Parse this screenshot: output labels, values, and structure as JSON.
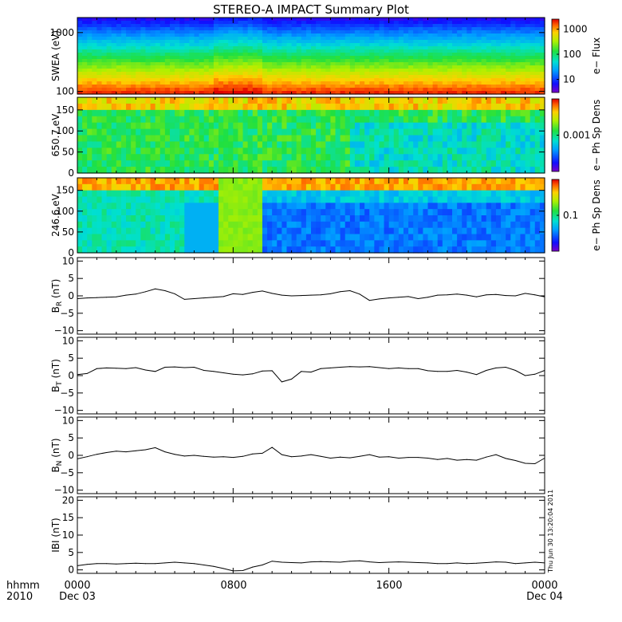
{
  "title": "STEREO-A IMPACT Summary Plot",
  "timestamp": "Thu Jun 30 13:20:04 2011",
  "x_axis": {
    "caption": [
      "hhmm",
      "2010"
    ],
    "ticks": [
      {
        "label": "0000",
        "sub": "Dec 03"
      },
      {
        "label": "0800",
        "sub": ""
      },
      {
        "label": "1600",
        "sub": ""
      },
      {
        "label": "0000",
        "sub": "Dec 04"
      }
    ]
  },
  "chart_data": [
    {
      "type": "heatmap",
      "id": "swea",
      "ylabel": "SWEA (eV)",
      "yscale": "log",
      "ylim": [
        90,
        1800
      ],
      "yticks": [
        {
          "v": 100,
          "label": "100"
        },
        {
          "v": 1000,
          "label": "1000"
        }
      ],
      "colorbar": {
        "label": "e− Flux",
        "scale": "log",
        "range": [
          3,
          2500
        ],
        "ticks": [
          {
            "v": 10,
            "label": "10"
          },
          {
            "v": 100,
            "label": "100"
          },
          {
            "v": 1000,
            "label": "1000"
          }
        ]
      },
      "grid": false
    },
    {
      "type": "heatmap",
      "id": "pad650",
      "ylabel": "650.7 eV",
      "ylim": [
        0,
        180
      ],
      "yticks": [
        {
          "v": 0,
          "label": "0"
        },
        {
          "v": 50,
          "label": "50"
        },
        {
          "v": 100,
          "label": "100"
        },
        {
          "v": 150,
          "label": "150"
        }
      ],
      "colorbar": {
        "label": "e− Ph Sp Dens",
        "scale": "log",
        "range": [
          0.0001,
          0.01
        ],
        "ticks": [
          {
            "v": 0.001,
            "label": "0.001"
          }
        ]
      },
      "grid": false
    },
    {
      "type": "heatmap",
      "id": "pad246",
      "ylabel": "246.6 eV",
      "ylim": [
        0,
        180
      ],
      "yticks": [
        {
          "v": 0,
          "label": "0"
        },
        {
          "v": 50,
          "label": "50"
        },
        {
          "v": 100,
          "label": "100"
        },
        {
          "v": 150,
          "label": "150"
        }
      ],
      "colorbar": {
        "label": "e− Ph Sp Dens",
        "scale": "log",
        "range": [
          0.02,
          0.5
        ],
        "ticks": [
          {
            "v": 0.1,
            "label": "0.1"
          }
        ]
      },
      "grid": false
    },
    {
      "type": "line",
      "id": "br",
      "ylabel": "B",
      "ysub": "R",
      "yunit": " (nT)",
      "ylim": [
        -11,
        11
      ],
      "yticks": [
        {
          "v": -10,
          "label": "−10"
        },
        {
          "v": -5,
          "label": "−5"
        },
        {
          "v": 0,
          "label": "0"
        },
        {
          "v": 5,
          "label": "5"
        },
        {
          "v": 10,
          "label": "10"
        }
      ],
      "x_hours": [
        0,
        0.5,
        1,
        1.5,
        2,
        2.5,
        3,
        3.5,
        4,
        4.5,
        5,
        5.5,
        6,
        6.5,
        7,
        7.5,
        8,
        8.5,
        9,
        9.5,
        10,
        10.5,
        11,
        11.5,
        12,
        12.5,
        13,
        13.5,
        14,
        14.5,
        15,
        15.5,
        16,
        16.5,
        17,
        17.5,
        18,
        18.5,
        19,
        19.5,
        20,
        20.5,
        21,
        21.5,
        22,
        22.5,
        23,
        23.5,
        24
      ],
      "values": [
        -0.8,
        -0.6,
        -0.5,
        -0.4,
        -0.3,
        0.2,
        0.5,
        1.2,
        2.0,
        1.5,
        0.6,
        -1.0,
        -0.8,
        -0.6,
        -0.4,
        -0.2,
        0.6,
        0.4,
        1.0,
        1.4,
        0.7,
        0.2,
        0.0,
        0.1,
        0.2,
        0.3,
        0.6,
        1.2,
        1.5,
        0.5,
        -1.3,
        -0.9,
        -0.6,
        -0.4,
        -0.2,
        -0.8,
        -0.4,
        0.2,
        0.3,
        0.5,
        0.2,
        -0.3,
        0.3,
        0.4,
        0.1,
        0.0,
        0.7,
        0.3,
        -0.3
      ]
    },
    {
      "type": "line",
      "id": "bt",
      "ylabel": "B",
      "ysub": "T",
      "yunit": " (nT)",
      "ylim": [
        -11,
        11
      ],
      "yticks": [
        {
          "v": -10,
          "label": "−10"
        },
        {
          "v": -5,
          "label": "−5"
        },
        {
          "v": 0,
          "label": "0"
        },
        {
          "v": 5,
          "label": "5"
        },
        {
          "v": 10,
          "label": "10"
        }
      ],
      "x_hours": [
        0,
        0.5,
        1,
        1.5,
        2,
        2.5,
        3,
        3.5,
        4,
        4.5,
        5,
        5.5,
        6,
        6.5,
        7,
        7.5,
        8,
        8.5,
        9,
        9.5,
        10,
        10.5,
        11,
        11.5,
        12,
        12.5,
        13,
        13.5,
        14,
        14.5,
        15,
        15.5,
        16,
        16.5,
        17,
        17.5,
        18,
        18.5,
        19,
        19.5,
        20,
        20.5,
        21,
        21.5,
        22,
        22.5,
        23,
        23.5,
        24
      ],
      "values": [
        0.3,
        0.6,
        2.0,
        2.2,
        2.1,
        2.0,
        2.3,
        1.6,
        1.2,
        2.4,
        2.5,
        2.3,
        2.4,
        1.5,
        1.2,
        0.8,
        0.4,
        0.2,
        0.5,
        1.3,
        1.4,
        -1.8,
        -1.0,
        1.2,
        1.0,
        2.0,
        2.2,
        2.4,
        2.6,
        2.5,
        2.6,
        2.3,
        2.0,
        2.2,
        2.0,
        2.0,
        1.4,
        1.2,
        1.2,
        1.5,
        1.0,
        0.3,
        1.5,
        2.2,
        2.4,
        1.5,
        0.0,
        0.4,
        1.5
      ]
    },
    {
      "type": "line",
      "id": "bn",
      "ylabel": "B",
      "ysub": "N",
      "yunit": " (nT)",
      "ylim": [
        -11,
        11
      ],
      "yticks": [
        {
          "v": -10,
          "label": "−10"
        },
        {
          "v": -5,
          "label": "−5"
        },
        {
          "v": 0,
          "label": "0"
        },
        {
          "v": 5,
          "label": "5"
        },
        {
          "v": 10,
          "label": "10"
        }
      ],
      "x_hours": [
        0,
        0.5,
        1,
        1.5,
        2,
        2.5,
        3,
        3.5,
        4,
        4.5,
        5,
        5.5,
        6,
        6.5,
        7,
        7.5,
        8,
        8.5,
        9,
        9.5,
        10,
        10.5,
        11,
        11.5,
        12,
        12.5,
        13,
        13.5,
        14,
        14.5,
        15,
        15.5,
        16,
        16.5,
        17,
        17.5,
        18,
        18.5,
        19,
        19.5,
        20,
        20.5,
        21,
        21.5,
        22,
        22.5,
        23,
        23.5,
        24
      ],
      "values": [
        -1.0,
        -0.4,
        0.3,
        0.8,
        1.2,
        1.0,
        1.3,
        1.6,
        2.2,
        1.0,
        0.3,
        -0.2,
        0.0,
        -0.3,
        -0.5,
        -0.4,
        -0.6,
        -0.3,
        0.4,
        0.6,
        2.3,
        0.2,
        -0.4,
        -0.2,
        0.2,
        -0.3,
        -0.8,
        -0.5,
        -0.7,
        -0.3,
        0.2,
        -0.5,
        -0.4,
        -0.8,
        -0.6,
        -0.6,
        -0.8,
        -1.2,
        -0.9,
        -1.4,
        -1.2,
        -1.4,
        -0.5,
        0.2,
        -0.9,
        -1.5,
        -2.3,
        -2.4,
        -0.8
      ]
    },
    {
      "type": "line",
      "id": "bmag",
      "ylabel": "IBI (nT)",
      "ylim": [
        -1,
        21
      ],
      "yticks": [
        {
          "v": 0,
          "label": "0"
        },
        {
          "v": 5,
          "label": "5"
        },
        {
          "v": 10,
          "label": "10"
        },
        {
          "v": 15,
          "label": "15"
        },
        {
          "v": 20,
          "label": "20"
        }
      ],
      "x_hours": [
        0,
        0.5,
        1,
        1.5,
        2,
        2.5,
        3,
        3.5,
        4,
        4.5,
        5,
        5.5,
        6,
        6.5,
        7,
        7.5,
        8,
        8.5,
        9,
        9.5,
        10,
        10.5,
        11,
        11.5,
        12,
        12.5,
        13,
        13.5,
        14,
        14.5,
        15,
        15.5,
        16,
        16.5,
        17,
        17.5,
        18,
        18.5,
        19,
        19.5,
        20,
        20.5,
        21,
        21.5,
        22,
        22.5,
        23,
        23.5,
        24
      ],
      "values": [
        1.2,
        1.6,
        1.8,
        1.8,
        1.7,
        1.8,
        1.9,
        1.8,
        1.8,
        2.0,
        2.2,
        2.0,
        1.8,
        1.4,
        1.0,
        0.4,
        -0.3,
        -0.2,
        0.8,
        1.4,
        2.5,
        2.2,
        2.1,
        2.0,
        2.3,
        2.4,
        2.3,
        2.2,
        2.5,
        2.6,
        2.3,
        2.1,
        2.2,
        2.3,
        2.2,
        2.1,
        2.0,
        1.8,
        1.8,
        2.0,
        1.8,
        1.9,
        2.1,
        2.3,
        2.2,
        1.8,
        2.0,
        2.2,
        2.0
      ]
    }
  ]
}
